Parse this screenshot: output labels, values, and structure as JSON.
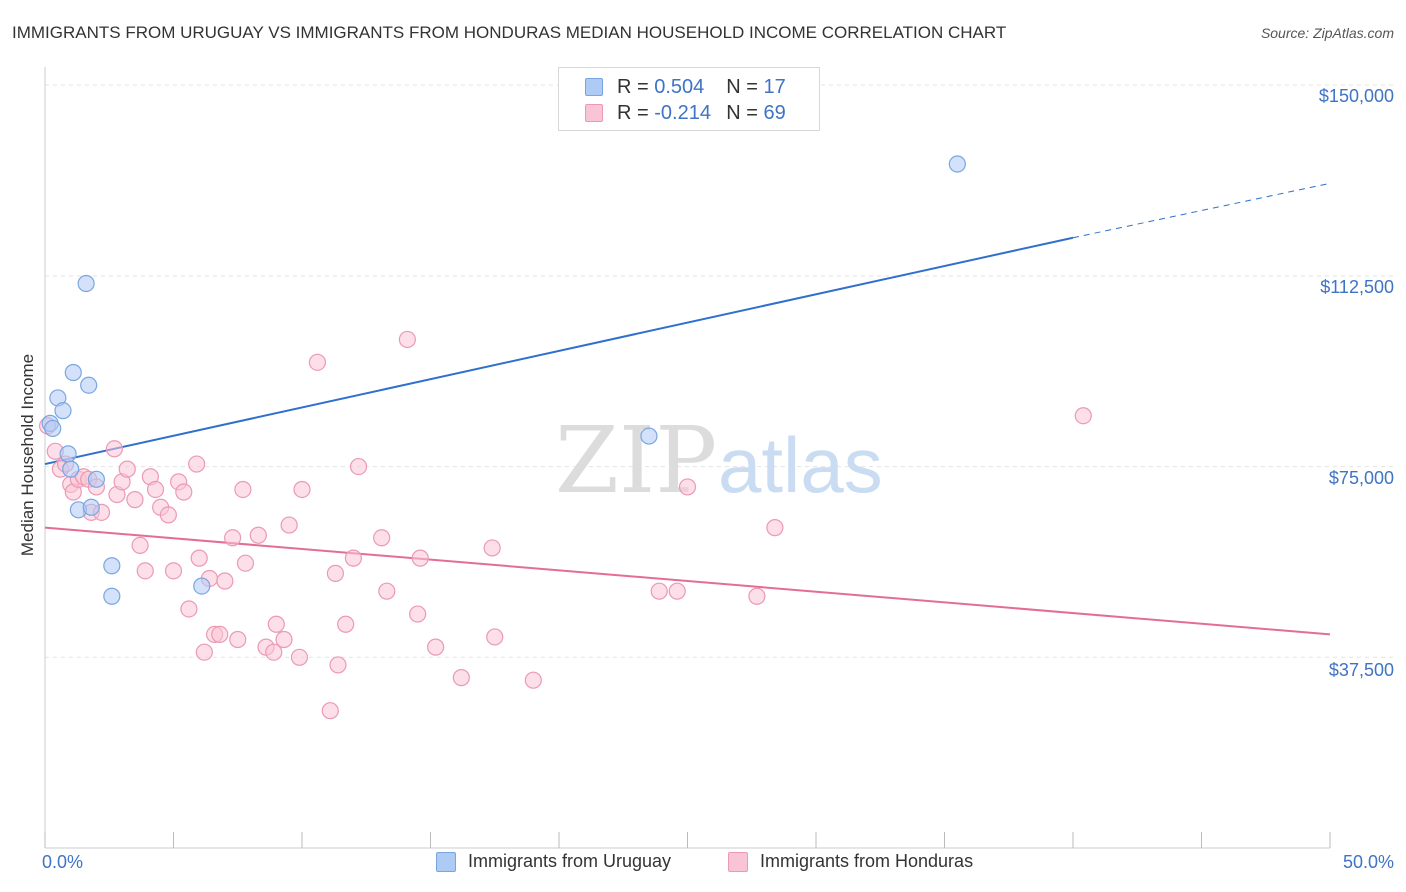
{
  "title": "IMMIGRANTS FROM URUGUAY VS IMMIGRANTS FROM HONDURAS MEDIAN HOUSEHOLD INCOME CORRELATION CHART",
  "source": "Source: ZipAtlas.com",
  "watermark": {
    "zip": "ZIP",
    "atlas": "atlas"
  },
  "legend": {
    "rows": [
      {
        "r_label": "R =",
        "r_value": "0.504",
        "n_label": "N =",
        "n_value": "17",
        "color": "#aecbf5",
        "border": "#7aa6e0"
      },
      {
        "r_label": "R =",
        "r_value": "-0.214",
        "n_label": "N =",
        "n_value": "69",
        "color": "#f9c4d5",
        "border": "#ec99b4"
      }
    ]
  },
  "bottom_legend": [
    "Immigrants from Uruguay",
    "Immigrants from Honduras"
  ],
  "chart_data": {
    "type": "scatter",
    "title": "IMMIGRANTS FROM URUGUAY VS IMMIGRANTS FROM HONDURAS MEDIAN HOUSEHOLD INCOME CORRELATION CHART",
    "xlabel": "",
    "ylabel": "Median Household Income",
    "xlim": [
      0,
      50
    ],
    "ylim": [
      0,
      152000
    ],
    "x_tick_labels": [
      "0.0%",
      "50.0%"
    ],
    "y_ticks": [
      37500,
      75000,
      112500,
      150000
    ],
    "y_tick_labels": [
      "$37,500",
      "$75,000",
      "$112,500",
      "$150,000"
    ],
    "grid": true,
    "series": [
      {
        "name": "Immigrants from Uruguay",
        "color": "#7aa6e0",
        "fill": "#aecbf5",
        "line_color": "#2f6fce",
        "trend": {
          "x0": 0,
          "y0": 75500,
          "x1": 40,
          "y1": 120000,
          "dash_to_x": 50,
          "dash_to_y": 130700
        },
        "points": [
          [
            0.2,
            83500
          ],
          [
            0.3,
            82500
          ],
          [
            0.5,
            88500
          ],
          [
            0.7,
            86000
          ],
          [
            0.9,
            77500
          ],
          [
            1.0,
            74500
          ],
          [
            1.1,
            93500
          ],
          [
            1.3,
            66500
          ],
          [
            1.6,
            111000
          ],
          [
            1.7,
            91000
          ],
          [
            1.8,
            67000
          ],
          [
            2.0,
            72500
          ],
          [
            2.6,
            55500
          ],
          [
            2.6,
            49500
          ],
          [
            6.1,
            51500
          ],
          [
            23.5,
            81000
          ],
          [
            35.5,
            134500
          ]
        ]
      },
      {
        "name": "Immigrants from Honduras",
        "color": "#ec99b4",
        "fill": "#f9c4d5",
        "line_color": "#e46d96",
        "trend": {
          "x0": 0,
          "y0": 63000,
          "x1": 50,
          "y1": 42000
        },
        "points": [
          [
            0.1,
            83000
          ],
          [
            0.4,
            78000
          ],
          [
            0.6,
            74500
          ],
          [
            0.8,
            75500
          ],
          [
            1.0,
            71500
          ],
          [
            1.1,
            70000
          ],
          [
            1.3,
            72500
          ],
          [
            1.5,
            73000
          ],
          [
            1.7,
            72500
          ],
          [
            1.8,
            66000
          ],
          [
            2.0,
            71000
          ],
          [
            2.2,
            66000
          ],
          [
            2.7,
            78500
          ],
          [
            2.8,
            69500
          ],
          [
            3.0,
            72000
          ],
          [
            3.2,
            74500
          ],
          [
            3.5,
            68500
          ],
          [
            3.7,
            59500
          ],
          [
            3.9,
            54500
          ],
          [
            4.1,
            73000
          ],
          [
            4.3,
            70500
          ],
          [
            4.5,
            67000
          ],
          [
            4.8,
            65500
          ],
          [
            5.0,
            54500
          ],
          [
            5.2,
            72000
          ],
          [
            5.4,
            70000
          ],
          [
            5.6,
            47000
          ],
          [
            5.9,
            75500
          ],
          [
            6.0,
            57000
          ],
          [
            6.2,
            38500
          ],
          [
            6.4,
            53000
          ],
          [
            6.6,
            42000
          ],
          [
            6.8,
            42000
          ],
          [
            7.0,
            52500
          ],
          [
            7.3,
            61000
          ],
          [
            7.5,
            41000
          ],
          [
            7.7,
            70500
          ],
          [
            7.8,
            56000
          ],
          [
            8.3,
            61500
          ],
          [
            8.6,
            39500
          ],
          [
            8.9,
            38500
          ],
          [
            9.0,
            44000
          ],
          [
            9.3,
            41000
          ],
          [
            9.5,
            63500
          ],
          [
            9.9,
            37500
          ],
          [
            10.0,
            70500
          ],
          [
            10.6,
            95500
          ],
          [
            11.1,
            27000
          ],
          [
            11.3,
            54000
          ],
          [
            11.4,
            36000
          ],
          [
            11.7,
            44000
          ],
          [
            12.0,
            57000
          ],
          [
            12.2,
            75000
          ],
          [
            13.1,
            61000
          ],
          [
            13.3,
            50500
          ],
          [
            14.1,
            100000
          ],
          [
            14.5,
            46000
          ],
          [
            14.6,
            57000
          ],
          [
            15.2,
            39500
          ],
          [
            16.2,
            33500
          ],
          [
            17.4,
            59000
          ],
          [
            17.5,
            41500
          ],
          [
            19.0,
            33000
          ],
          [
            23.9,
            50500
          ],
          [
            24.6,
            50500
          ],
          [
            25.0,
            71000
          ],
          [
            27.7,
            49500
          ],
          [
            28.4,
            63000
          ],
          [
            40.4,
            85000
          ]
        ]
      }
    ]
  }
}
